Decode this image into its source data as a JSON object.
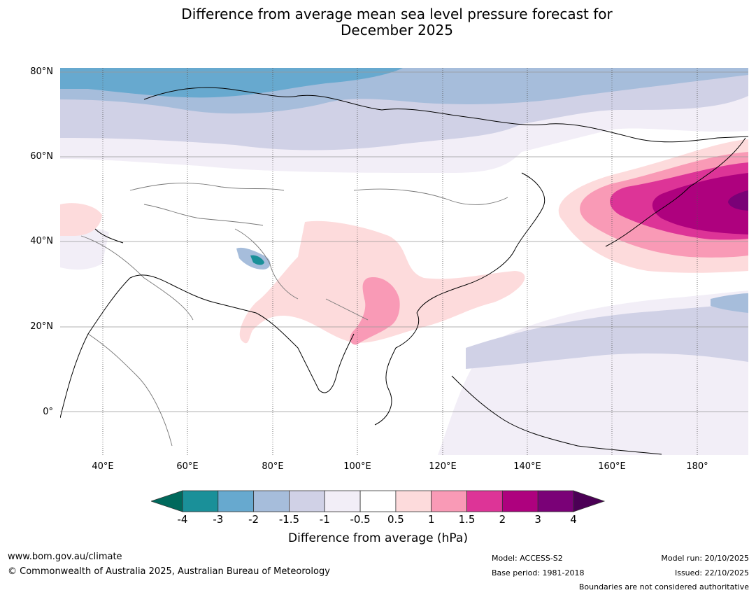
{
  "title_line1": "Difference from average mean sea level pressure forecast for",
  "title_line2": "December 2025",
  "map": {
    "projection": "equirectangular",
    "lon_range_deg": [
      30,
      192
    ],
    "lat_range_deg": [
      -10,
      81
    ],
    "lat_labels": [
      "80°N",
      "60°N",
      "40°N",
      "20°N",
      "0°"
    ],
    "lon_labels": [
      "40°E",
      "60°E",
      "80°E",
      "100°E",
      "120°E",
      "140°E",
      "160°E",
      "180°"
    ]
  },
  "colorbar": {
    "ticks": [
      "-4",
      "-3",
      "-2",
      "-1.5",
      "-1",
      "-0.5",
      "0.5",
      "1",
      "1.5",
      "2",
      "3",
      "4"
    ],
    "under_color": "#00695c",
    "over_color": "#4b0055",
    "colors": [
      "#1a9099",
      "#67a9cf",
      "#a6bddb",
      "#d0d1e6",
      "#f2eef7",
      "#ffffff",
      "#fddbdc",
      "#f99ab6",
      "#dd3497",
      "#ae017e",
      "#7a0177"
    ],
    "label": "Difference from average (hPa)"
  },
  "footer": {
    "website": "www.bom.gov.au/climate",
    "copyright": "© Commonwealth of Australia 2025, Australian Bureau of Meteorology",
    "model": "Model: ACCESS-S2",
    "base_period": "Base period: 1981-2018",
    "model_run": "Model run: 20/10/2025",
    "issued": "Issued: 22/10/2025",
    "boundaries": "Boundaries are not considered authoritative"
  }
}
